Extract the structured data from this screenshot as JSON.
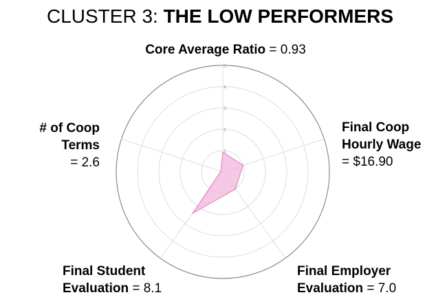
{
  "title": {
    "prefix": "CLUSTER 3: ",
    "bold": "THE LOW PERFORMERS"
  },
  "labels": {
    "core": {
      "name": "Core Average Ratio",
      "value": " = 0.93"
    },
    "wage": {
      "line1": "Final Coop",
      "line2": "Hourly Wage",
      "line3": "= $16.90"
    },
    "terms": {
      "line1": "# of Coop",
      "line2": "Terms",
      "line3": "= 2.6"
    },
    "student": {
      "line1": "Final Student",
      "line2": "Evaluation",
      "value": " = 8.1"
    },
    "employer": {
      "line1": "Final Employer",
      "line2": "Evaluation",
      "value": " = 7.0"
    }
  },
  "chart_data": {
    "type": "radar",
    "axes": [
      "Core Average Ratio",
      "Final Coop Hourly Wage",
      "Final Employer Evaluation",
      "Final Student Evaluation",
      "# of Coop Terms"
    ],
    "rlim": [
      0,
      5
    ],
    "r_ticks": [
      "1",
      "2",
      "3",
      "4",
      "5"
    ],
    "series": [
      {
        "values": [
          0.93,
          1.0,
          1.0,
          2.4,
          0.1
        ]
      }
    ],
    "colors": {
      "fill": "#f2b6dc",
      "stroke": "#e07bbd",
      "grid": "#dddddd",
      "outer": "#888888"
    }
  }
}
